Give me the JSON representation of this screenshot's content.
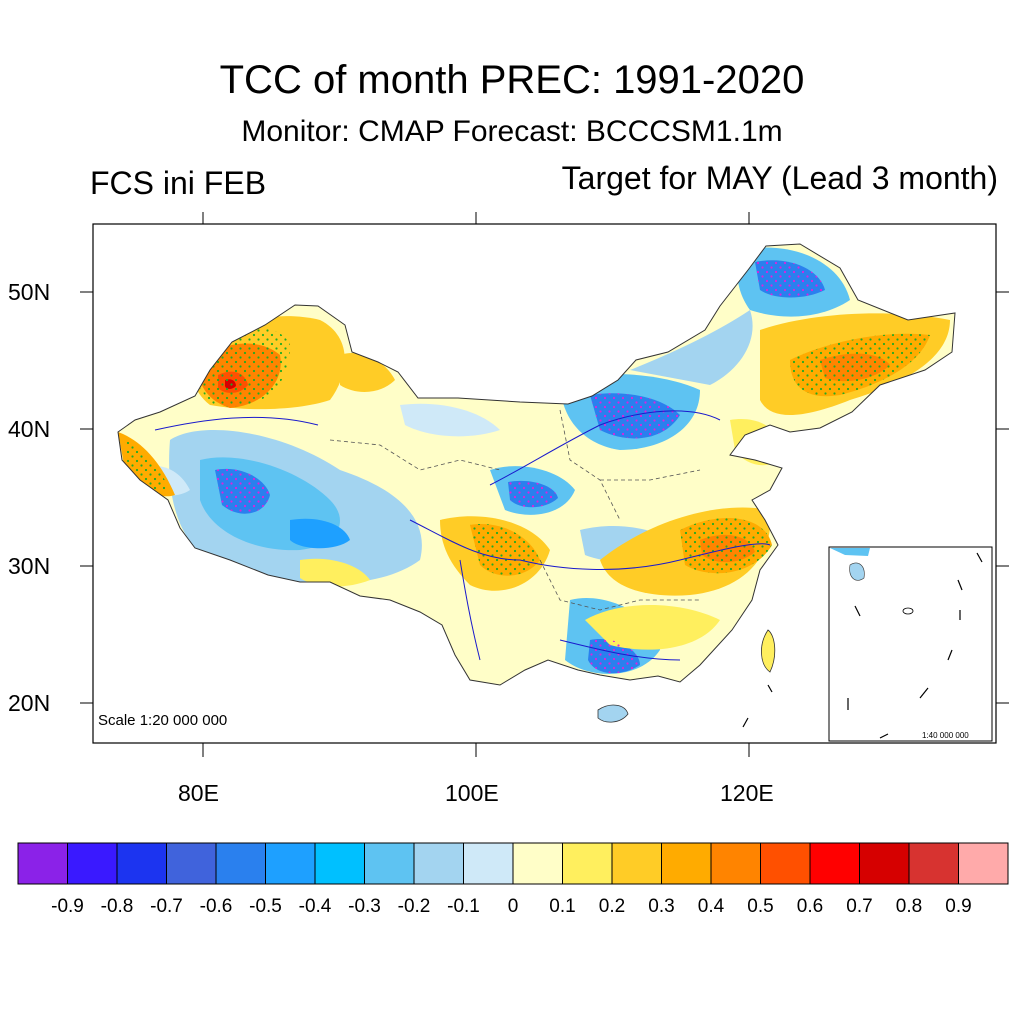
{
  "header": {
    "title": "TCC of month PREC: 1991-2020",
    "subtitle": "Monitor: CMAP   Forecast: BCCCSM1.1m",
    "init_label": "FCS ini FEB",
    "target_label": "Target for MAY (Lead 3 month)"
  },
  "map": {
    "scale_main": "Scale 1:20 000 000",
    "scale_inset": "1:40 000 000",
    "lat_labels": [
      "50N",
      "40N",
      "30N",
      "20N"
    ],
    "lon_labels": [
      "80E",
      "100E",
      "120E"
    ]
  },
  "colorbar": {
    "colors": [
      "#8b22e8",
      "#3a19ff",
      "#1c34f0",
      "#4063dc",
      "#2a80ee",
      "#1ea0ff",
      "#00c0ff",
      "#5ec3f2",
      "#a3d4f0",
      "#cfe9f8",
      "#fffec8",
      "#ffef5e",
      "#ffcc26",
      "#ffab00",
      "#ff8400",
      "#ff5000",
      "#ff0000",
      "#d60000",
      "#d73330",
      "#ffaaaa"
    ],
    "labels": [
      "-0.9",
      "-0.8",
      "-0.7",
      "-0.6",
      "-0.5",
      "-0.4",
      "-0.3",
      "-0.2",
      "-0.1",
      "0",
      "0.1",
      "0.2",
      "0.3",
      "0.4",
      "0.5",
      "0.6",
      "0.7",
      "0.8",
      "0.9"
    ]
  }
}
